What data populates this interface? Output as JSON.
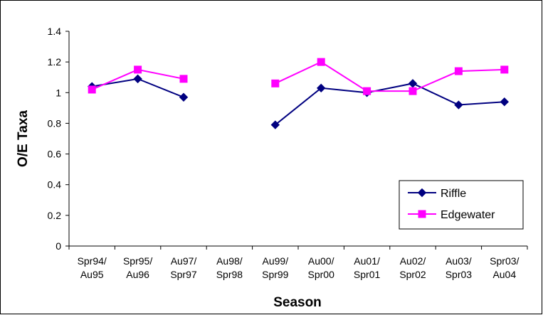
{
  "chart_data": {
    "type": "line",
    "title": "",
    "xlabel": "Season",
    "ylabel": "O/E Taxa",
    "categories": [
      [
        "Spr94/",
        "Au95"
      ],
      [
        "Spr95/",
        "Au96"
      ],
      [
        "Au97/",
        "Spr97"
      ],
      [
        "Au98/",
        "Spr98"
      ],
      [
        "Au99/",
        "Spr99"
      ],
      [
        "Au00/",
        "Spr00"
      ],
      [
        "Au01/",
        "Spr01"
      ],
      [
        "Au02/",
        "Spr02"
      ],
      [
        "Au03/",
        "Spr03"
      ],
      [
        "Spr03/",
        "Au04"
      ]
    ],
    "ylim": [
      0,
      1.4
    ],
    "yticks": [
      "0",
      "0.2",
      "0.4",
      "0.6",
      "0.8",
      "1",
      "1.2",
      "1.4"
    ],
    "grid": false,
    "legend_position": "bottom-right",
    "series": [
      {
        "name": "Riffle",
        "color": "#000080",
        "marker": "diamond",
        "values": [
          1.04,
          1.09,
          0.97,
          null,
          0.79,
          1.03,
          1.0,
          1.06,
          0.92,
          0.94
        ]
      },
      {
        "name": "Edgewater",
        "color": "#FF00FF",
        "marker": "square",
        "values": [
          1.02,
          1.15,
          1.09,
          null,
          1.06,
          1.2,
          1.01,
          1.01,
          1.14,
          1.15
        ]
      }
    ]
  }
}
